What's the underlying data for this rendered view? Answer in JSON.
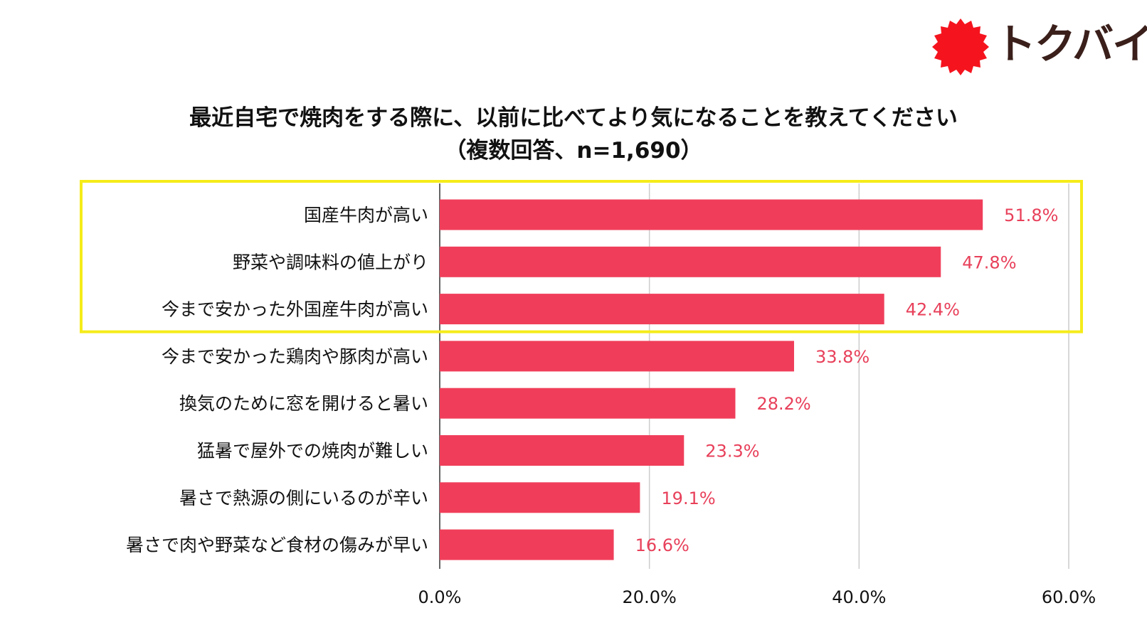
{
  "brand": {
    "name": "トクバイ",
    "logo_color": "#f5141e",
    "text_color": "#3a1f1a"
  },
  "chart_data": {
    "type": "bar",
    "orientation": "horizontal",
    "title": "最近自宅で焼肉をする際に、以前に比べてより気になることを教えてください",
    "subtitle": "（複数回答、n=1,690）",
    "categories": [
      "国産牛肉が高い",
      "野菜や調味料の値上がり",
      "今まで安かった外国産牛肉が高い",
      "今まで安かった鶏肉や豚肉が高い",
      "換気のために窓を開けると暑い",
      "猛暑で屋外での焼肉が難しい",
      "暑さで熱源の側にいるのが辛い",
      "暑さで肉や野菜など食材の傷みが早い"
    ],
    "values": [
      51.8,
      47.8,
      42.4,
      33.8,
      28.2,
      23.3,
      19.1,
      16.6
    ],
    "value_labels": [
      "51.8%",
      "47.8%",
      "42.4%",
      "33.8%",
      "28.2%",
      "23.3%",
      "19.1%",
      "16.6%"
    ],
    "xlim": [
      0,
      60
    ],
    "ticks": [
      0,
      20,
      40,
      60
    ],
    "tick_labels": [
      "0.0%",
      "20.0%",
      "40.0%",
      "60.0%"
    ],
    "grid": true,
    "bar_color": "#f03e5a",
    "value_label_color": "#e8405a",
    "highlight": {
      "indices": [
        0,
        1,
        2
      ],
      "color": "#f5ec1a"
    }
  }
}
